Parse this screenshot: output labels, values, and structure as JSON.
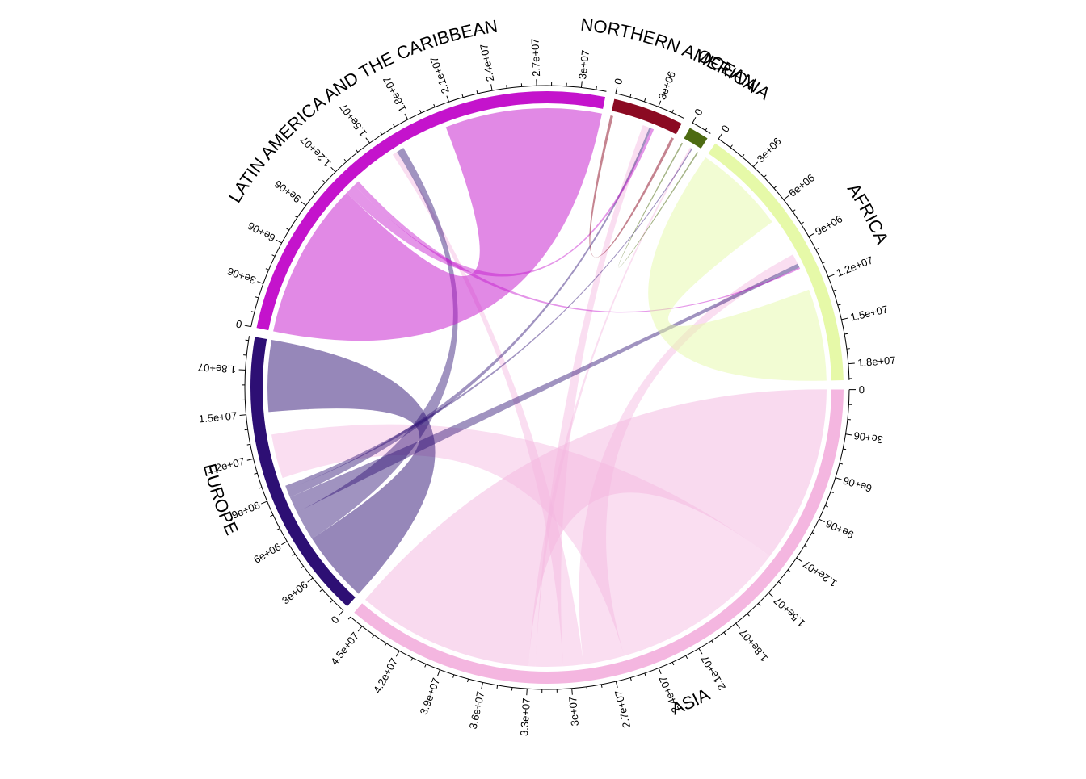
{
  "chart_data": {
    "type": "chord",
    "title": "",
    "unit_note": "",
    "sectors": [
      {
        "name": "ASIA",
        "label": "ASIA",
        "color": "#F4B6E0",
        "total": 46000000,
        "ticks": [
          "0",
          "3e+06",
          "6e+06",
          "9e+06",
          "1.2e+07",
          "1.5e+07",
          "1.8e+07",
          "2.1e+07",
          "2.4e+07",
          "2.7e+07",
          "3e+07",
          "3.3e+07",
          "3.6e+07",
          "3.9e+07",
          "4.2e+07",
          "4.5e+07"
        ]
      },
      {
        "name": "EUROPE",
        "label": "EUROPE",
        "color": "#2D0F74",
        "total": 20300000,
        "ticks": [
          "0",
          "3e+06",
          "6e+06",
          "9e+06",
          "1.2e+07",
          "1.5e+07",
          "1.8e+07"
        ]
      },
      {
        "name": "LATIN AMERICA AND THE CARIBBEAN",
        "label": "LATIN AMERICA AND THE CARIBBEAN",
        "color": "#C413CC",
        "total": 31700000,
        "ticks": [
          "0",
          "3e+06",
          "6e+06",
          "9e+06",
          "1.2e+07",
          "1.5e+07",
          "1.8e+07",
          "2.1e+07",
          "2.4e+07",
          "2.7e+07",
          "3e+07"
        ]
      },
      {
        "name": "NORTHERN AMERICA",
        "label": "NORTHERN AMERICA",
        "color": "#8B0A22",
        "total": 4900000,
        "ticks": [
          "0",
          "3e+06"
        ]
      },
      {
        "name": "OCEANIA",
        "label": "OCEANIA",
        "color": "#4D6B12",
        "total": 1400000,
        "ticks": [
          "0"
        ]
      },
      {
        "name": "AFRICA",
        "label": "AFRICA",
        "color": "#E6F9A8",
        "total": 19100000,
        "ticks": [
          "0",
          "3e+06",
          "6e+06",
          "9e+06",
          "1.2e+07",
          "1.5e+07",
          "1.8e+07"
        ]
      }
    ],
    "flows": [
      {
        "from": "ASIA",
        "to": "ASIA",
        "value": 26000000
      },
      {
        "from": "ASIA",
        "to": "EUROPE",
        "value": 13000000
      },
      {
        "from": "ASIA",
        "to": "AFRICA",
        "value": 3000000
      },
      {
        "from": "ASIA",
        "to": "LATIN AMERICA AND THE CARIBBEAN",
        "value": 1500000
      },
      {
        "from": "ASIA",
        "to": "NORTHERN AMERICA",
        "value": 2000000
      },
      {
        "from": "ASIA",
        "to": "OCEANIA",
        "value": 500000
      },
      {
        "from": "EUROPE",
        "to": "EUROPE",
        "value": 10500000
      },
      {
        "from": "EUROPE",
        "to": "LATIN AMERICA AND THE CARIBBEAN",
        "value": 2200000
      },
      {
        "from": "EUROPE",
        "to": "AFRICA",
        "value": 1200000
      },
      {
        "from": "EUROPE",
        "to": "NORTHERN AMERICA",
        "value": 600000
      },
      {
        "from": "EUROPE",
        "to": "OCEANIA",
        "value": 300000
      },
      {
        "from": "LATIN AMERICA AND THE CARIBBEAN",
        "to": "LATIN AMERICA AND THE CARIBBEAN",
        "value": 23000000
      },
      {
        "from": "LATIN AMERICA AND THE CARIBBEAN",
        "to": "NORTHERN AMERICA",
        "value": 800000
      },
      {
        "from": "LATIN AMERICA AND THE CARIBBEAN",
        "to": "AFRICA",
        "value": 400000
      },
      {
        "from": "AFRICA",
        "to": "AFRICA",
        "value": 13500000
      },
      {
        "from": "NORTHERN AMERICA",
        "to": "NORTHERN AMERICA",
        "value": 400000
      },
      {
        "from": "OCEANIA",
        "to": "OCEANIA",
        "value": 200000
      }
    ]
  }
}
